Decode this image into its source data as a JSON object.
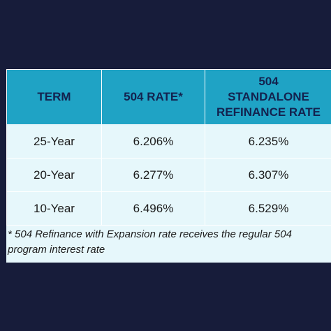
{
  "table": {
    "headers": {
      "term": "TERM",
      "rate": "504 RATE*",
      "refi_line1": "504",
      "refi_line2": "STANDALONE",
      "refi_line3": "REFINANCE RATE"
    },
    "rows": [
      {
        "term": "25-Year",
        "rate": "6.206%",
        "refi": "6.235%"
      },
      {
        "term": "20-Year",
        "rate": "6.277%",
        "refi": "6.307%"
      },
      {
        "term": "10-Year",
        "rate": "6.496%",
        "refi": "6.529%"
      }
    ]
  },
  "footnote": "* 504 Refinance with Expansion rate receives the regular 504 program interest rate",
  "colors": {
    "background": "#171c3a",
    "header_bg": "#1fa3c5",
    "header_text": "#13224e",
    "cell_bg": "#e6f7fb"
  }
}
